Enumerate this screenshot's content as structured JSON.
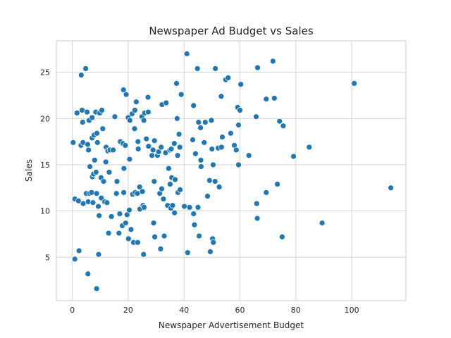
{
  "chart_data": {
    "type": "scatter",
    "title": "Newspaper Ad Budget vs Sales",
    "xlabel": "Newspaper Advertisement Budget",
    "ylabel": "Sales",
    "xlim": [
      -5.7,
      119.4
    ],
    "ylim": [
      0.3,
      28.4
    ],
    "xticks": [
      0,
      20,
      40,
      60,
      80,
      100
    ],
    "yticks": [
      5,
      10,
      15,
      20,
      25
    ],
    "grid": true,
    "legend": "none",
    "point_color": "#1f77b4",
    "points": [
      [
        0.3,
        17.4
      ],
      [
        0.9,
        11.3
      ],
      [
        0.9,
        4.8
      ],
      [
        1.7,
        20.6
      ],
      [
        2.2,
        11.1
      ],
      [
        2.4,
        5.7
      ],
      [
        3.1,
        17.1
      ],
      [
        3.2,
        24.7
      ],
      [
        3.5,
        20.9
      ],
      [
        3.7,
        19.6
      ],
      [
        3.8,
        17.4
      ],
      [
        3.9,
        10.8
      ],
      [
        4.8,
        25.4
      ],
      [
        5.0,
        11.9
      ],
      [
        5.3,
        20.7
      ],
      [
        5.5,
        17.2
      ],
      [
        5.6,
        3.2
      ],
      [
        5.7,
        11.0
      ],
      [
        5.8,
        16.6
      ],
      [
        6.0,
        19.8
      ],
      [
        6.2,
        11.9
      ],
      [
        6.3,
        14.8
      ],
      [
        6.9,
        12.0
      ],
      [
        7.1,
        20.1
      ],
      [
        7.1,
        17.9
      ],
      [
        7.2,
        13.7
      ],
      [
        7.4,
        10.9
      ],
      [
        7.6,
        14.0
      ],
      [
        7.8,
        18.2
      ],
      [
        8.0,
        15.5
      ],
      [
        8.4,
        20.7
      ],
      [
        8.5,
        14.2
      ],
      [
        8.7,
        1.6
      ],
      [
        8.7,
        11.9
      ],
      [
        8.8,
        18.4
      ],
      [
        9.0,
        17.4
      ],
      [
        9.3,
        10.5
      ],
      [
        9.4,
        5.3
      ],
      [
        9.6,
        9.5
      ],
      [
        9.8,
        20.6
      ],
      [
        10.3,
        13.6
      ],
      [
        10.4,
        11.4
      ],
      [
        10.6,
        20.9
      ],
      [
        10.9,
        18.9
      ],
      [
        11.2,
        13.2
      ],
      [
        11.6,
        11.0
      ],
      [
        12.0,
        15.3
      ],
      [
        12.1,
        16.9
      ],
      [
        12.4,
        10.9
      ],
      [
        12.7,
        16.5
      ],
      [
        13.0,
        7.6
      ],
      [
        13.2,
        14.2
      ],
      [
        13.5,
        16.6
      ],
      [
        14.0,
        9.4
      ],
      [
        14.6,
        16.6
      ],
      [
        15.2,
        20.2
      ],
      [
        15.8,
        11.9
      ],
      [
        16.0,
        13.2
      ],
      [
        16.7,
        7.6
      ],
      [
        17.0,
        9.7
      ],
      [
        17.2,
        17.5
      ],
      [
        17.9,
        8.4
      ],
      [
        18.1,
        17.3
      ],
      [
        18.3,
        23.1
      ],
      [
        18.4,
        12.0
      ],
      [
        18.5,
        14.6
      ],
      [
        19.0,
        17.1
      ],
      [
        19.1,
        8.7
      ],
      [
        19.3,
        22.6
      ],
      [
        19.6,
        9.6
      ],
      [
        20.0,
        20.1
      ],
      [
        20.1,
        7.0
      ],
      [
        20.4,
        10.1
      ],
      [
        20.5,
        15.6
      ],
      [
        20.6,
        19.8
      ],
      [
        21.0,
        8.0
      ],
      [
        21.4,
        20.5
      ],
      [
        21.6,
        11.8
      ],
      [
        21.9,
        6.6
      ],
      [
        22.3,
        18.9
      ],
      [
        22.4,
        20.9
      ],
      [
        22.5,
        12.0
      ],
      [
        22.9,
        21.8
      ],
      [
        23.3,
        11.9
      ],
      [
        23.4,
        6.6
      ],
      [
        23.5,
        17.5
      ],
      [
        23.6,
        16.7
      ],
      [
        24.1,
        12.6
      ],
      [
        24.2,
        10.2
      ],
      [
        24.9,
        20.2
      ],
      [
        25.1,
        12.1
      ],
      [
        25.3,
        10.6
      ],
      [
        25.5,
        5.3
      ],
      [
        25.6,
        19.8
      ],
      [
        25.7,
        10.4
      ],
      [
        25.9,
        20.6
      ],
      [
        26.5,
        17.8
      ],
      [
        27.1,
        22.3
      ],
      [
        27.2,
        20.7
      ],
      [
        27.3,
        17.0
      ],
      [
        28.5,
        16.0
      ],
      [
        28.9,
        16.6
      ],
      [
        29.1,
        8.7
      ],
      [
        29.3,
        13.2
      ],
      [
        29.4,
        17.6
      ],
      [
        29.5,
        7.2
      ],
      [
        30.5,
        16.0
      ],
      [
        30.9,
        16.4
      ],
      [
        31.3,
        11.9
      ],
      [
        31.6,
        5.9
      ],
      [
        31.8,
        16.9
      ],
      [
        32.0,
        12.4
      ],
      [
        32.1,
        21.5
      ],
      [
        32.6,
        11.3
      ],
      [
        32.9,
        7.3
      ],
      [
        33.4,
        16.3
      ],
      [
        33.6,
        21.7
      ],
      [
        34.1,
        10.6
      ],
      [
        34.5,
        14.6
      ],
      [
        34.9,
        16.6
      ],
      [
        35.0,
        12.9
      ],
      [
        35.3,
        10.3
      ],
      [
        35.4,
        16.7
      ],
      [
        35.6,
        13.6
      ],
      [
        35.9,
        10.6
      ],
      [
        36.5,
        17.3
      ],
      [
        36.6,
        9.8
      ],
      [
        36.8,
        13.4
      ],
      [
        37.3,
        23.8
      ],
      [
        37.5,
        20.0
      ],
      [
        37.7,
        16.0
      ],
      [
        37.8,
        12.0
      ],
      [
        38.2,
        18.3
      ],
      [
        38.5,
        16.9
      ],
      [
        38.6,
        12.3
      ],
      [
        39.0,
        22.6
      ],
      [
        40.1,
        10.5
      ],
      [
        41.0,
        27.0
      ],
      [
        41.3,
        5.5
      ],
      [
        42.0,
        10.4
      ],
      [
        43.1,
        17.7
      ],
      [
        43.4,
        21.4
      ],
      [
        43.4,
        9.7
      ],
      [
        43.7,
        8.5
      ],
      [
        44.1,
        16.2
      ],
      [
        44.8,
        25.4
      ],
      [
        45.0,
        10.4
      ],
      [
        45.2,
        19.6
      ],
      [
        45.4,
        7.3
      ],
      [
        45.9,
        19.0
      ],
      [
        46.0,
        15.5
      ],
      [
        46.1,
        14.8
      ],
      [
        47.2,
        17.4
      ],
      [
        47.6,
        19.6
      ],
      [
        48.4,
        11.6
      ],
      [
        49.1,
        13.3
      ],
      [
        49.4,
        5.6
      ],
      [
        49.8,
        19.8
      ],
      [
        50.0,
        16.7
      ],
      [
        50.2,
        7.0
      ],
      [
        50.4,
        15.0
      ],
      [
        50.5,
        6.6
      ],
      [
        51.1,
        13.2
      ],
      [
        51.2,
        25.4
      ],
      [
        52.2,
        16.8
      ],
      [
        52.6,
        12.6
      ],
      [
        53.3,
        22.4
      ],
      [
        53.4,
        16.9
      ],
      [
        53.7,
        18.0
      ],
      [
        54.9,
        24.2
      ],
      [
        55.8,
        24.4
      ],
      [
        56.7,
        18.4
      ],
      [
        58.0,
        17.1
      ],
      [
        58.7,
        16.6
      ],
      [
        59.2,
        21.2
      ],
      [
        59.5,
        19.3
      ],
      [
        59.5,
        15.0
      ],
      [
        60.0,
        20.9
      ],
      [
        60.3,
        23.7
      ],
      [
        63.2,
        16.0
      ],
      [
        65.8,
        20.2
      ],
      [
        66.0,
        10.8
      ],
      [
        66.2,
        9.2
      ],
      [
        66.3,
        25.5
      ],
      [
        69.4,
        22.1
      ],
      [
        69.4,
        12.0
      ],
      [
        71.8,
        26.2
      ],
      [
        72.3,
        22.2
      ],
      [
        73.4,
        12.9
      ],
      [
        74.2,
        19.7
      ],
      [
        75.1,
        7.2
      ],
      [
        75.5,
        19.2
      ],
      [
        79.2,
        15.9
      ],
      [
        84.8,
        16.9
      ],
      [
        89.4,
        8.7
      ],
      [
        100.9,
        23.8
      ],
      [
        114.0,
        12.5
      ]
    ]
  }
}
